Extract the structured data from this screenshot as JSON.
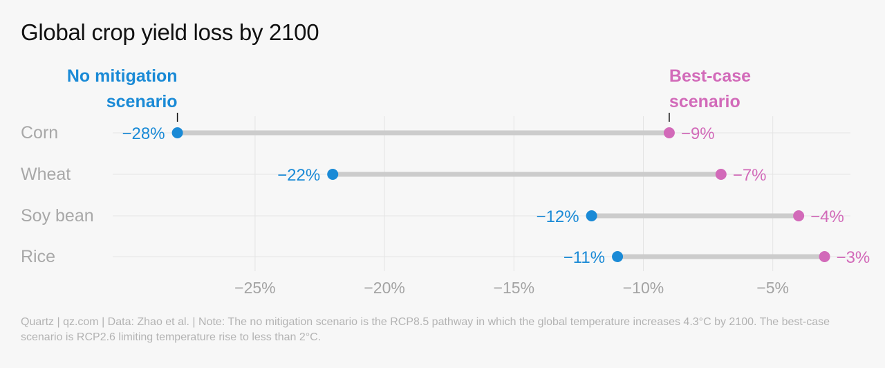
{
  "chart_data": {
    "type": "dumbbell",
    "title": "Global crop yield loss by 2100",
    "categories": [
      "Corn",
      "Wheat",
      "Soy bean",
      "Rice"
    ],
    "series": [
      {
        "name": "No mitigation scenario",
        "legend_lines": [
          "No mitigation",
          "scenario"
        ],
        "color": "#1a8ad6",
        "values": [
          -28,
          -22,
          -12,
          -11
        ],
        "labels": [
          "−28%",
          "−22%",
          "−12%",
          "−11%"
        ]
      },
      {
        "name": "Best-case scenario",
        "legend_lines": [
          "Best-case",
          "scenario"
        ],
        "color": "#d26ab9",
        "values": [
          -9,
          -7,
          -4,
          -3
        ],
        "labels": [
          "−9%",
          "−7%",
          "−4%",
          "−3%"
        ]
      }
    ],
    "xlim": [
      -30.5,
      -2
    ],
    "x_ticks": [
      -25,
      -20,
      -15,
      -10,
      -5
    ],
    "x_tick_labels": [
      "−25%",
      "−20%",
      "−15%",
      "−10%",
      "−5%"
    ],
    "grid": true,
    "bar_color": "#cccccc"
  },
  "footnote": "Quartz | qz.com | Data: Zhao et al. | Note: The no mitigation scenario is the RCP8.5 pathway in which the global temperature increases 4.3°C by 2100. The best-case scenario is RCP2.6 limiting temperature rise to less than 2°C."
}
